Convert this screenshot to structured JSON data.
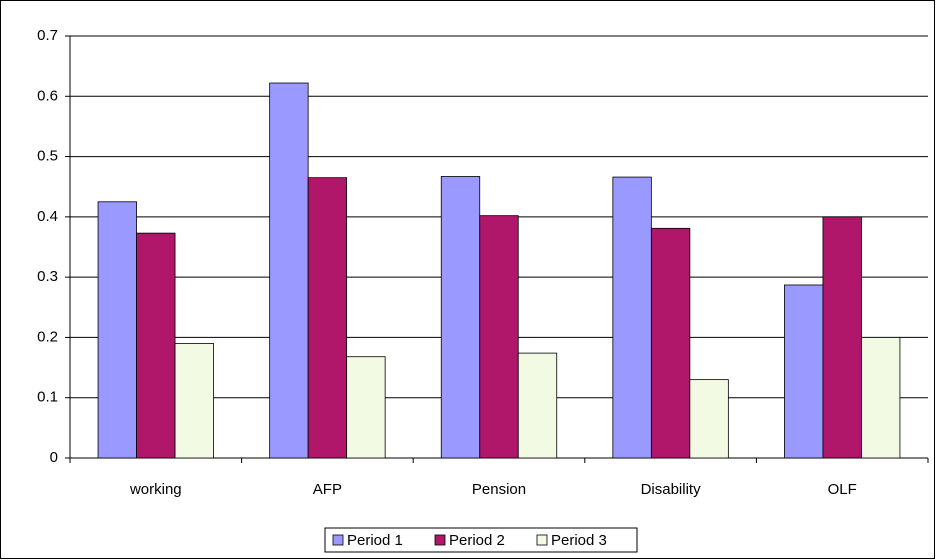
{
  "chart_data": {
    "type": "bar",
    "categories": [
      "working",
      "AFP",
      "Pension",
      "Disability",
      "OLF"
    ],
    "series": [
      {
        "name": "Period 1",
        "color": "#9999ff",
        "values": [
          0.425,
          0.622,
          0.467,
          0.466,
          0.287
        ]
      },
      {
        "name": "Period 2",
        "color": "#b0176a",
        "values": [
          0.373,
          0.465,
          0.402,
          0.381,
          0.4
        ]
      },
      {
        "name": "Period 3",
        "color": "#f2fae4",
        "values": [
          0.19,
          0.168,
          0.174,
          0.13,
          0.2
        ]
      }
    ],
    "ylim": [
      0,
      0.7
    ],
    "yticks": [
      0,
      0.1,
      0.2,
      0.3,
      0.4,
      0.5,
      0.6,
      0.7
    ],
    "grid": true,
    "legend": "bottom"
  }
}
